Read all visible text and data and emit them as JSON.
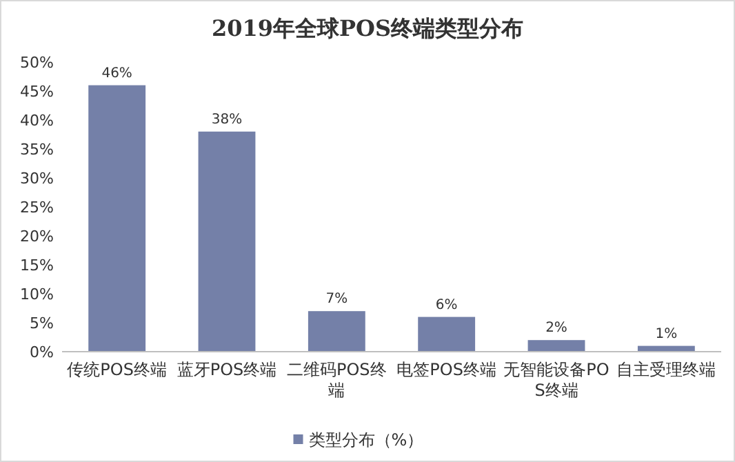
{
  "chart_data": {
    "type": "bar",
    "title": "2019年全球POS终端类型分布",
    "categories": [
      "传统POS终端",
      "蓝牙POS终端",
      "二维码POS终端",
      "电签POS终端",
      "无智能设备POS终端",
      "自主受理终端"
    ],
    "series": [
      {
        "name": "类型分布（%）",
        "color": "#7480a8",
        "values": [
          46,
          38,
          7,
          6,
          2,
          1
        ],
        "value_labels": [
          "46%",
          "38%",
          "7%",
          "6%",
          "2%",
          "1%"
        ]
      }
    ],
    "ylim": [
      0,
      50
    ],
    "yticks": [
      {
        "value": 0,
        "label": "0%"
      },
      {
        "value": 5,
        "label": "5%"
      },
      {
        "value": 10,
        "label": "10%"
      },
      {
        "value": 15,
        "label": "15%"
      },
      {
        "value": 20,
        "label": "20%"
      },
      {
        "value": 25,
        "label": "25%"
      },
      {
        "value": 30,
        "label": "30%"
      },
      {
        "value": 35,
        "label": "35%"
      },
      {
        "value": 40,
        "label": "40%"
      },
      {
        "value": 45,
        "label": "45%"
      },
      {
        "value": 50,
        "label": "50%"
      }
    ],
    "grid": false,
    "legend": "bottom"
  }
}
